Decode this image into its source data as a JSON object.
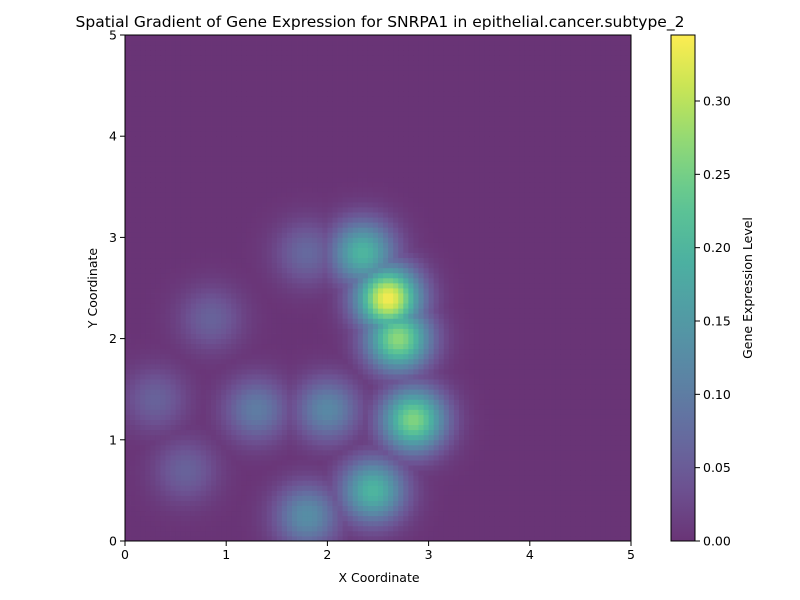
{
  "chart_data": {
    "type": "heatmap",
    "title": "Spatial Gradient of Gene Expression for SNRPA1 in epithelial.cancer.subtype_2",
    "xlabel": "X Coordinate",
    "ylabel": "Y Coordinate",
    "xlim": [
      0,
      5
    ],
    "ylim": [
      0,
      5
    ],
    "x_ticks": [
      "0",
      "1",
      "2",
      "3",
      "4",
      "5"
    ],
    "y_ticks": [
      "0",
      "1",
      "2",
      "3",
      "4",
      "5"
    ],
    "colorbar": {
      "label": "Gene Expression Level",
      "range": [
        0,
        0.345
      ],
      "ticks": [
        "0.00",
        "0.05",
        "0.10",
        "0.15",
        "0.20",
        "0.25",
        "0.30"
      ],
      "tick_values": [
        0,
        0.05,
        0.1,
        0.15,
        0.2,
        0.25,
        0.3
      ],
      "colormap": "viridis",
      "alpha": 0.8
    },
    "grid": false,
    "hotspots": [
      {
        "x": 2.6,
        "y": 2.4,
        "value": 0.34
      },
      {
        "x": 2.7,
        "y": 2.0,
        "value": 0.27
      },
      {
        "x": 2.85,
        "y": 1.2,
        "value": 0.26
      },
      {
        "x": 2.35,
        "y": 2.85,
        "value": 0.2
      },
      {
        "x": 2.45,
        "y": 0.5,
        "value": 0.2
      },
      {
        "x": 1.8,
        "y": 0.25,
        "value": 0.13
      },
      {
        "x": 2.0,
        "y": 1.3,
        "value": 0.12
      },
      {
        "x": 1.3,
        "y": 1.3,
        "value": 0.1
      },
      {
        "x": 0.85,
        "y": 2.2,
        "value": 0.06
      },
      {
        "x": 0.3,
        "y": 1.4,
        "value": 0.06
      },
      {
        "x": 0.6,
        "y": 0.7,
        "value": 0.06
      },
      {
        "x": 1.8,
        "y": 2.85,
        "value": 0.07
      }
    ]
  }
}
